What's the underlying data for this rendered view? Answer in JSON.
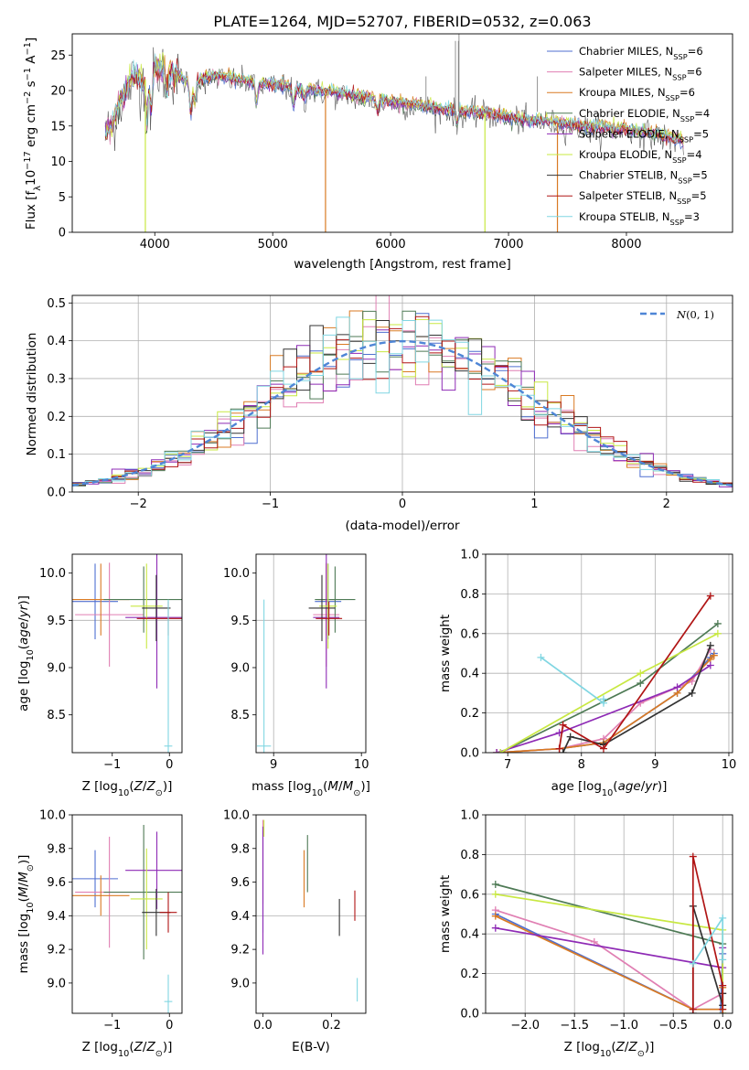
{
  "chart_data": [
    {
      "type": "line",
      "title": "PLATE=1264, MJD=52707, FIBERID=0532, z=0.063",
      "xlabel": "wavelength [Angstrom, rest frame]",
      "ylabel": "Flux [f_λ10^-17 erg cm^-2 s^-1 A^-1]",
      "xlim": [
        3300,
        8900
      ],
      "ylim": [
        0,
        28
      ],
      "xticks": [
        4000,
        5000,
        6000,
        7000,
        8000
      ],
      "yticks": [
        0,
        5,
        10,
        15,
        20,
        25
      ],
      "grid": false,
      "legend_position": "upper right",
      "spectrum_points": [
        [
          3580,
          13.8
        ],
        [
          3650,
          15.5
        ],
        [
          3700,
          18.5
        ],
        [
          3750,
          19.5
        ],
        [
          3800,
          21.5
        ],
        [
          3850,
          22.0
        ],
        [
          3900,
          21.0
        ],
        [
          3950,
          22.5
        ],
        [
          4000,
          23.0
        ],
        [
          4100,
          22.8
        ],
        [
          4200,
          22.2
        ],
        [
          4300,
          21.0
        ],
        [
          4400,
          21.6
        ],
        [
          4500,
          22.0
        ],
        [
          4600,
          21.9
        ],
        [
          4700,
          21.6
        ],
        [
          4800,
          21.3
        ],
        [
          4900,
          21.0
        ],
        [
          5000,
          20.8
        ],
        [
          5100,
          20.7
        ],
        [
          5200,
          20.3
        ],
        [
          5300,
          20.2
        ],
        [
          5400,
          20.0
        ],
        [
          5500,
          19.8
        ],
        [
          5600,
          19.5
        ],
        [
          5700,
          19.3
        ],
        [
          5800,
          19.0
        ],
        [
          5900,
          18.7
        ],
        [
          6000,
          18.5
        ],
        [
          6100,
          18.2
        ],
        [
          6200,
          18.0
        ],
        [
          6300,
          17.8
        ],
        [
          6400,
          17.5
        ],
        [
          6500,
          17.3
        ],
        [
          6600,
          17.2
        ],
        [
          6700,
          17.0
        ],
        [
          6800,
          16.8
        ],
        [
          6900,
          16.6
        ],
        [
          7000,
          16.3
        ],
        [
          7100,
          16.0
        ],
        [
          7200,
          15.8
        ],
        [
          7300,
          15.7
        ],
        [
          7400,
          15.5
        ],
        [
          7500,
          15.2
        ],
        [
          7600,
          15.0
        ],
        [
          7700,
          14.8
        ],
        [
          7800,
          14.8
        ],
        [
          7900,
          14.6
        ],
        [
          8000,
          14.5
        ],
        [
          8100,
          14.3
        ],
        [
          8200,
          14.0
        ],
        [
          8300,
          13.7
        ],
        [
          8400,
          13.2
        ],
        [
          8480,
          12.8
        ]
      ],
      "series": [
        {
          "name": "Chabrier MILES, N$_{SSP}$=6",
          "label_main": "Chabrier MILES, N",
          "label_sub": "SSP",
          "label_end": "=6",
          "color": "#4f6fd0"
        },
        {
          "name": "Salpeter MILES, N$_{SSP}$=6",
          "label_main": "Salpeter MILES, N",
          "label_sub": "SSP",
          "label_end": "=6",
          "color": "#e07fb3"
        },
        {
          "name": "Kroupa MILES, N$_{SSP}$=6",
          "label_main": "Kroupa MILES, N",
          "label_sub": "SSP",
          "label_end": "=6",
          "color": "#d97a23"
        },
        {
          "name": "Chabrier ELODIE, N$_{SSP}$=4",
          "label_main": "Chabrier ELODIE, N",
          "label_sub": "SSP",
          "label_end": "=4",
          "color": "#4e7a55"
        },
        {
          "name": "Salpeter ELODIE, N$_{SSP}$=5",
          "label_main": "Salpeter ELODIE, N",
          "label_sub": "SSP",
          "label_end": "=5",
          "color": "#8e2ab5"
        },
        {
          "name": "Kroupa ELODIE, N$_{SSP}$=4",
          "label_main": "Kroupa ELODIE, N",
          "label_sub": "SSP",
          "label_end": "=4",
          "color": "#c8e842"
        },
        {
          "name": "Chabrier STELIB, N$_{SSP}$=5",
          "label_main": "Chabrier STELIB, N",
          "label_sub": "SSP",
          "label_end": "=5",
          "color": "#333333"
        },
        {
          "name": "Salpeter STELIB, N$_{SSP}$=5",
          "label_main": "Salpeter STELIB, N",
          "label_sub": "SSP",
          "label_end": "=5",
          "color": "#b01515"
        },
        {
          "name": "Kroupa STELIB, N$_{SSP}$=3",
          "label_main": "Kroupa STELIB, N",
          "label_sub": "SSP",
          "label_end": "=3",
          "color": "#80d6e2"
        }
      ]
    },
    {
      "type": "histogram",
      "xlabel": "(data-model)/error",
      "ylabel": "Normed distribution",
      "xlim": [
        -2.5,
        2.5
      ],
      "ylim": [
        0,
        0.52
      ],
      "xticks": [
        -2,
        -1,
        0,
        1,
        2
      ],
      "yticks": [
        0.0,
        0.1,
        0.2,
        0.3,
        0.4,
        0.5
      ],
      "grid": true,
      "legend_position": "upper right",
      "legend": "N(0,1)",
      "bin_width": 0.1
    },
    {
      "type": "scatter",
      "xlabel": "Z [log10(Z/Z⊙)]",
      "ylabel": "age [log10(age/yr)]",
      "xlim": [
        -1.7,
        0.22
      ],
      "ylim": [
        8.1,
        10.2
      ],
      "xticks": [
        -1,
        0
      ],
      "yticks": [
        8.5,
        9.0,
        9.5,
        10.0
      ],
      "points": [
        {
          "x": -1.3,
          "y": 9.7,
          "xerr": 0.4,
          "yerr": 0.4
        },
        {
          "x": -1.05,
          "y": 9.56,
          "xerr": 0.6,
          "yerr": 0.55
        },
        {
          "x": -1.2,
          "y": 9.72,
          "xerr": 0.5,
          "yerr": 0.38
        },
        {
          "x": -0.45,
          "y": 9.72,
          "xerr": 0.7,
          "yerr": 0.35
        },
        {
          "x": -0.22,
          "y": 9.53,
          "xerr": 0.55,
          "yerr": 0.75
        },
        {
          "x": -0.4,
          "y": 9.65,
          "xerr": 0.28,
          "yerr": 0.45
        },
        {
          "x": -0.23,
          "y": 9.63,
          "xerr": 0.25,
          "yerr": 0.35
        },
        {
          "x": -0.02,
          "y": 9.52,
          "xerr": 0.55,
          "yerr": 0.18
        },
        {
          "x": -0.02,
          "y": 8.17,
          "xerr": 0.07,
          "yerr": 1.55
        }
      ]
    },
    {
      "type": "scatter",
      "xlabel": "mass [log10(M/M⊙)]",
      "ylabel": "",
      "xlim": [
        8.8,
        10.05
      ],
      "ylim": [
        8.1,
        10.2
      ],
      "xticks": [
        9,
        10
      ],
      "yticks": [
        8.5,
        9.0,
        9.5,
        10.0
      ],
      "points": [
        {
          "x": 9.62,
          "y": 9.7,
          "xerr": 0.15,
          "yerr": 0.4
        },
        {
          "x": 9.6,
          "y": 9.56,
          "xerr": 0.15,
          "yerr": 0.55
        },
        {
          "x": 9.6,
          "y": 9.72,
          "xerr": 0.1,
          "yerr": 0.38
        },
        {
          "x": 9.7,
          "y": 9.72,
          "xerr": 0.23,
          "yerr": 0.35
        },
        {
          "x": 9.6,
          "y": 9.53,
          "xerr": 0.15,
          "yerr": 0.75
        },
        {
          "x": 9.62,
          "y": 9.65,
          "xerr": 0.1,
          "yerr": 0.45
        },
        {
          "x": 9.55,
          "y": 9.63,
          "xerr": 0.15,
          "yerr": 0.35
        },
        {
          "x": 9.63,
          "y": 9.52,
          "xerr": 0.15,
          "yerr": 0.18
        },
        {
          "x": 8.89,
          "y": 8.17,
          "xerr": 0.08,
          "yerr": 1.55
        }
      ]
    },
    {
      "type": "line",
      "xlabel": "age [log10(age/yr)]",
      "ylabel": "mass weight",
      "xlim": [
        6.7,
        10.05
      ],
      "ylim": [
        0,
        1.0
      ],
      "xticks": [
        7,
        8,
        9,
        10
      ],
      "yticks": [
        0.0,
        0.2,
        0.4,
        0.6,
        0.8,
        1.0
      ],
      "grid": true,
      "series": [
        {
          "color": "#4f6fd0",
          "x": [
            6.85,
            7.7,
            8.3,
            9.3,
            9.75,
            9.8
          ],
          "y": [
            0.0,
            0.02,
            0.05,
            0.3,
            0.48,
            0.5
          ]
        },
        {
          "color": "#e07fb3",
          "x": [
            6.85,
            7.7,
            8.3,
            8.8,
            9.5,
            9.75
          ],
          "y": [
            0.0,
            0.02,
            0.07,
            0.25,
            0.36,
            0.52
          ]
        },
        {
          "color": "#d97a23",
          "x": [
            6.85,
            7.7,
            8.3,
            9.3,
            9.75,
            9.8
          ],
          "y": [
            0.0,
            0.02,
            0.05,
            0.3,
            0.47,
            0.49
          ]
        },
        {
          "color": "#4e7a55",
          "x": [
            6.9,
            8.8,
            9.85
          ],
          "y": [
            0.0,
            0.35,
            0.65
          ]
        },
        {
          "color": "#8e2ab5",
          "x": [
            6.85,
            7.7,
            9.3,
            9.75
          ],
          "y": [
            0.0,
            0.1,
            0.33,
            0.44
          ]
        },
        {
          "color": "#c8e842",
          "x": [
            6.9,
            8.8,
            9.85
          ],
          "y": [
            0.0,
            0.4,
            0.6
          ]
        },
        {
          "color": "#333333",
          "x": [
            7.75,
            7.85,
            8.3,
            9.5,
            9.75
          ],
          "y": [
            0.0,
            0.08,
            0.04,
            0.3,
            0.54
          ]
        },
        {
          "color": "#b01515",
          "x": [
            7.7,
            7.75,
            8.3,
            9.75
          ],
          "y": [
            0.02,
            0.14,
            0.02,
            0.79
          ]
        },
        {
          "color": "#80d6e2",
          "x": [
            7.45,
            8.3,
            8.3
          ],
          "y": [
            0.48,
            0.25,
            0.27
          ]
        }
      ]
    },
    {
      "type": "scatter",
      "xlabel": "Z [log10(Z/Z⊙)]",
      "ylabel": "mass [log10(M/M⊙)]",
      "xlim": [
        -1.7,
        0.22
      ],
      "ylim": [
        8.82,
        10.0
      ],
      "xticks": [
        -1,
        0
      ],
      "yticks": [
        9.0,
        9.2,
        9.4,
        9.6,
        9.8,
        10.0
      ],
      "points": [
        {
          "x": -1.3,
          "y": 9.62,
          "xerr": 0.4,
          "yerr": 0.17
        },
        {
          "x": -1.05,
          "y": 9.54,
          "xerr": 0.6,
          "yerr": 0.33
        },
        {
          "x": -1.2,
          "y": 9.52,
          "xerr": 0.5,
          "yerr": 0.12
        },
        {
          "x": -0.45,
          "y": 9.54,
          "xerr": 0.7,
          "yerr": 0.4
        },
        {
          "x": -0.22,
          "y": 9.67,
          "xerr": 0.55,
          "yerr": 0.23
        },
        {
          "x": -0.4,
          "y": 9.5,
          "xerr": 0.28,
          "yerr": 0.3
        },
        {
          "x": -0.23,
          "y": 9.42,
          "xerr": 0.25,
          "yerr": 0.14
        },
        {
          "x": -0.02,
          "y": 9.42,
          "xerr": 0.15,
          "yerr": 0.12
        },
        {
          "x": -0.02,
          "y": 8.89,
          "xerr": 0.07,
          "yerr": 0.16
        }
      ]
    },
    {
      "type": "scatter",
      "xlabel": "E(B-V)",
      "ylabel": "",
      "xlim": [
        -0.02,
        0.3
      ],
      "ylim": [
        8.82,
        10.0
      ],
      "xticks": [
        0.0,
        0.2
      ],
      "yticks": [
        9.0,
        9.2,
        9.4,
        9.6,
        9.8,
        10.0
      ],
      "points": [
        {
          "x": 0.0,
          "y": 9.6,
          "yerr": 0.3
        },
        {
          "x": 0.0,
          "y": 9.72,
          "yerr": 0.25
        },
        {
          "x": 0.12,
          "y": 9.62,
          "yerr": 0.17
        },
        {
          "x": 0.13,
          "y": 9.71,
          "yerr": 0.17
        },
        {
          "x": 0.0,
          "y": 9.55,
          "yerr": 0.38
        },
        {
          "x": 0.003,
          "y": 9.92,
          "yerr": 0.05
        },
        {
          "x": 0.223,
          "y": 9.39,
          "yerr": 0.11
        },
        {
          "x": 0.268,
          "y": 9.46,
          "yerr": 0.09
        },
        {
          "x": 0.275,
          "y": 8.96,
          "yerr": 0.07
        }
      ]
    },
    {
      "type": "line",
      "xlabel": "Z [log10(Z/Z⊙)]",
      "ylabel": "mass weight",
      "xlim": [
        -2.4,
        0.1
      ],
      "ylim": [
        0,
        1.0
      ],
      "xticks": [
        -2.0,
        -1.5,
        -1.0,
        -0.5,
        0.0
      ],
      "yticks": [
        0.0,
        0.2,
        0.4,
        0.6,
        0.8,
        1.0
      ],
      "grid": true,
      "series": [
        {
          "color": "#4f6fd0",
          "x": [
            -2.3,
            -0.3,
            -0.02,
            0.0
          ],
          "y": [
            0.5,
            0.02,
            0.02,
            0.3
          ]
        },
        {
          "color": "#e07fb3",
          "x": [
            -2.3,
            -1.3,
            -0.3,
            0.0
          ],
          "y": [
            0.52,
            0.36,
            0.02,
            0.1
          ]
        },
        {
          "color": "#d97a23",
          "x": [
            -2.3,
            -0.3,
            0.0,
            0.0
          ],
          "y": [
            0.49,
            0.02,
            0.02,
            0.13
          ]
        },
        {
          "color": "#4e7a55",
          "x": [
            -2.3,
            0.0,
            0.0
          ],
          "y": [
            0.65,
            0.35,
            0.0
          ]
        },
        {
          "color": "#8e2ab5",
          "x": [
            -2.3,
            0.0,
            0.0
          ],
          "y": [
            0.43,
            0.23,
            0.33
          ]
        },
        {
          "color": "#c8e842",
          "x": [
            -2.3,
            0.0,
            0.0
          ],
          "y": [
            0.6,
            0.42,
            0.0
          ]
        },
        {
          "color": "#333333",
          "x": [
            -0.3,
            -0.3,
            0.0,
            0.0
          ],
          "y": [
            0.0,
            0.54,
            0.04,
            0.1
          ]
        },
        {
          "color": "#b01515",
          "x": [
            -0.3,
            -0.3,
            0.0,
            0.0
          ],
          "y": [
            0.02,
            0.79,
            0.14,
            0.02
          ]
        },
        {
          "color": "#80d6e2",
          "x": [
            -0.3,
            0.0,
            0.0
          ],
          "y": [
            0.25,
            0.48,
            0.27
          ]
        }
      ]
    }
  ]
}
